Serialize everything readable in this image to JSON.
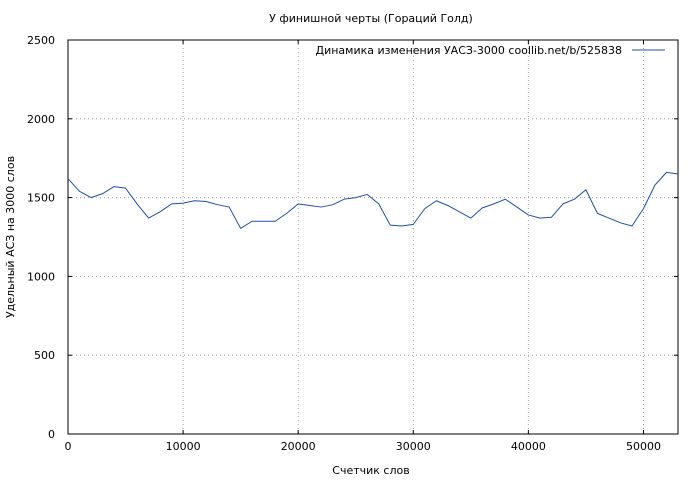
{
  "chart_data": {
    "type": "line",
    "title": "У финишной черты (Гораций Голд)",
    "xlabel": "Счетчик слов",
    "ylabel": "Удельный АСЗ на 3000 слов",
    "xlim": [
      0,
      53000
    ],
    "ylim": [
      0,
      2500
    ],
    "x_ticks": [
      0,
      10000,
      20000,
      30000,
      40000,
      50000
    ],
    "y_ticks": [
      0,
      500,
      1000,
      1500,
      2000,
      2500
    ],
    "grid": true,
    "legend_position": "top-right",
    "series": [
      {
        "name": "Динамика изменения УАСЗ-3000  coollib.net/b/525838",
        "color": "#1f4fa8",
        "points": [
          [
            0,
            1620
          ],
          [
            1000,
            1540
          ],
          [
            2000,
            1500
          ],
          [
            3000,
            1525
          ],
          [
            4000,
            1570
          ],
          [
            5000,
            1560
          ],
          [
            6000,
            1460
          ],
          [
            7000,
            1370
          ],
          [
            8000,
            1410
          ],
          [
            9000,
            1460
          ],
          [
            10000,
            1465
          ],
          [
            11000,
            1480
          ],
          [
            12000,
            1475
          ],
          [
            13000,
            1455
          ],
          [
            14000,
            1440
          ],
          [
            15000,
            1305
          ],
          [
            16000,
            1350
          ],
          [
            17000,
            1350
          ],
          [
            18000,
            1350
          ],
          [
            19000,
            1400
          ],
          [
            20000,
            1460
          ],
          [
            21000,
            1450
          ],
          [
            22000,
            1440
          ],
          [
            23000,
            1455
          ],
          [
            24000,
            1490
          ],
          [
            25000,
            1500
          ],
          [
            26000,
            1520
          ],
          [
            27000,
            1460
          ],
          [
            28000,
            1325
          ],
          [
            29000,
            1320
          ],
          [
            30000,
            1330
          ],
          [
            31000,
            1430
          ],
          [
            32000,
            1480
          ],
          [
            33000,
            1450
          ],
          [
            34000,
            1410
          ],
          [
            35000,
            1370
          ],
          [
            36000,
            1435
          ],
          [
            37000,
            1460
          ],
          [
            38000,
            1490
          ],
          [
            39000,
            1440
          ],
          [
            40000,
            1390
          ],
          [
            41000,
            1370
          ],
          [
            42000,
            1375
          ],
          [
            43000,
            1460
          ],
          [
            44000,
            1490
          ],
          [
            45000,
            1550
          ],
          [
            46000,
            1400
          ],
          [
            47000,
            1370
          ],
          [
            48000,
            1340
          ],
          [
            49000,
            1320
          ],
          [
            50000,
            1430
          ],
          [
            51000,
            1580
          ],
          [
            52000,
            1660
          ],
          [
            53000,
            1650
          ]
        ]
      }
    ]
  }
}
